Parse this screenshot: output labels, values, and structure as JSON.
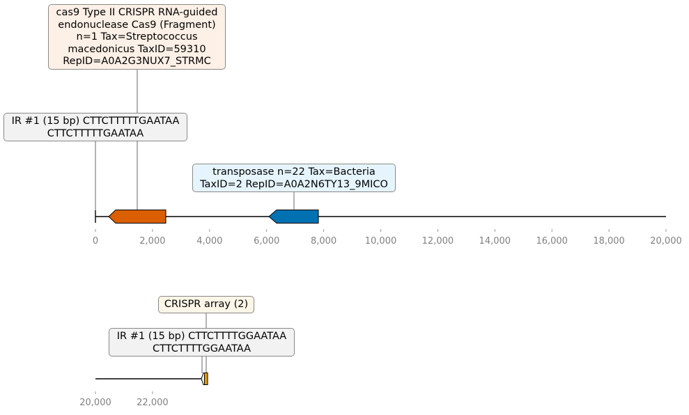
{
  "colors": {
    "cds_orange": "#d95f02",
    "cds_blue": "#0072b2",
    "crispr_gold": "#e69f00",
    "box_cas9": "#fdf0e6",
    "box_ir": "#f2f2f2",
    "box_transposase": "#e6f5fd",
    "box_crispr": "#fdf6e8",
    "axis_text": "#808080"
  },
  "labels": {
    "cas9": "cas9 Type II CRISPR RNA-guided\nendonuclease Cas9 (Fragment)\nn=1 Tax=Streptococcus\nmacedonicus TaxID=59310\nRepID=A0A2G3NUX7_STRMC",
    "ir1_top": "IR #1 (15 bp) CTTCTTTTTGAATAA\nCTTCTTTTTGAATAA",
    "transposase": "transposase n=22 Tax=Bacteria\nTaxID=2 RepID=A0A2N6TY13_9MICO",
    "crispr_array": "CRISPR array (2)",
    "ir1_bottom": "IR #1 (15 bp) CTTCTTTTGGAATAA\nCTTCTTTTGGAATAA"
  },
  "track1": {
    "range": [
      0,
      20000
    ],
    "ticks": [
      "0",
      "2,000",
      "4,000",
      "6,000",
      "8,000",
      "10,000",
      "12,000",
      "14,000",
      "16,000",
      "18,000",
      "20,000"
    ],
    "features": [
      {
        "name": "cas9",
        "start": 450,
        "end": 2480,
        "strand": -1,
        "color": "cds_orange"
      },
      {
        "name": "transposase",
        "start": 6150,
        "end": 7800,
        "strand": -1,
        "color": "cds_blue"
      },
      {
        "name": "ir1",
        "start": 0,
        "end": 15,
        "strand": 0,
        "color": "box_ir"
      }
    ]
  },
  "track2": {
    "range": [
      20000,
      40000
    ],
    "ticks": [
      "20,000",
      "22,000"
    ],
    "features": [
      {
        "name": "ir1",
        "start": 23740,
        "end": 23840,
        "strand": -1,
        "color": "box_ir"
      },
      {
        "name": "crispr_array",
        "start": 23860,
        "end": 23990,
        "strand": 0,
        "color": "crispr_gold"
      }
    ]
  }
}
